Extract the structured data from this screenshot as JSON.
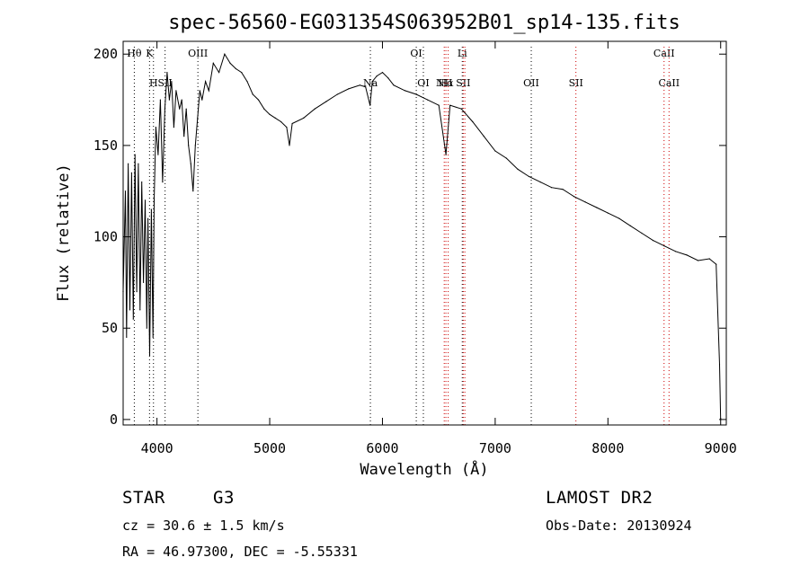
{
  "chart_data": {
    "type": "line",
    "title": "spec-56560-EG031354S063952B01_sp14-135.fits",
    "xlabel": "Wavelength (Å)",
    "ylabel": "Flux (relative)",
    "xlim": [
      3700,
      9050
    ],
    "ylim": [
      -3,
      207
    ],
    "xticks": [
      4000,
      5000,
      6000,
      7000,
      8000,
      9000
    ],
    "yticks": [
      0,
      50,
      100,
      150,
      200
    ],
    "grid": false,
    "series": [
      {
        "color": "#000000",
        "points": [
          [
            3700,
            70
          ],
          [
            3720,
            125
          ],
          [
            3730,
            45
          ],
          [
            3745,
            140
          ],
          [
            3760,
            60
          ],
          [
            3775,
            135
          ],
          [
            3790,
            55
          ],
          [
            3805,
            145
          ],
          [
            3820,
            70
          ],
          [
            3835,
            140
          ],
          [
            3850,
            60
          ],
          [
            3865,
            130
          ],
          [
            3880,
            75
          ],
          [
            3895,
            120
          ],
          [
            3910,
            50
          ],
          [
            3920,
            110
          ],
          [
            3935,
            35
          ],
          [
            3950,
            115
          ],
          [
            3965,
            45
          ],
          [
            3975,
            120
          ],
          [
            3990,
            160
          ],
          [
            4010,
            145
          ],
          [
            4030,
            175
          ],
          [
            4050,
            130
          ],
          [
            4070,
            170
          ],
          [
            4090,
            190
          ],
          [
            4110,
            175
          ],
          [
            4130,
            185
          ],
          [
            4150,
            160
          ],
          [
            4170,
            180
          ],
          [
            4200,
            170
          ],
          [
            4220,
            175
          ],
          [
            4240,
            155
          ],
          [
            4260,
            170
          ],
          [
            4280,
            150
          ],
          [
            4300,
            140
          ],
          [
            4320,
            125
          ],
          [
            4340,
            150
          ],
          [
            4360,
            165
          ],
          [
            4380,
            180
          ],
          [
            4400,
            175
          ],
          [
            4430,
            185
          ],
          [
            4460,
            180
          ],
          [
            4500,
            195
          ],
          [
            4550,
            190
          ],
          [
            4600,
            200
          ],
          [
            4650,
            195
          ],
          [
            4700,
            192
          ],
          [
            4750,
            190
          ],
          [
            4800,
            185
          ],
          [
            4850,
            178
          ],
          [
            4900,
            175
          ],
          [
            4950,
            170
          ],
          [
            5000,
            167
          ],
          [
            5050,
            165
          ],
          [
            5100,
            163
          ],
          [
            5150,
            160
          ],
          [
            5175,
            150
          ],
          [
            5200,
            162
          ],
          [
            5300,
            165
          ],
          [
            5400,
            170
          ],
          [
            5500,
            174
          ],
          [
            5600,
            178
          ],
          [
            5700,
            181
          ],
          [
            5800,
            183
          ],
          [
            5850,
            182
          ],
          [
            5890,
            172
          ],
          [
            5910,
            185
          ],
          [
            5950,
            188
          ],
          [
            6000,
            190
          ],
          [
            6050,
            187
          ],
          [
            6100,
            183
          ],
          [
            6200,
            180
          ],
          [
            6300,
            178
          ],
          [
            6400,
            175
          ],
          [
            6500,
            172
          ],
          [
            6563,
            145
          ],
          [
            6600,
            172
          ],
          [
            6700,
            170
          ],
          [
            6800,
            163
          ],
          [
            6900,
            155
          ],
          [
            7000,
            147
          ],
          [
            7100,
            143
          ],
          [
            7200,
            137
          ],
          [
            7300,
            133
          ],
          [
            7400,
            130
          ],
          [
            7500,
            127
          ],
          [
            7600,
            126
          ],
          [
            7700,
            122
          ],
          [
            7800,
            119
          ],
          [
            7900,
            116
          ],
          [
            8000,
            113
          ],
          [
            8100,
            110
          ],
          [
            8200,
            106
          ],
          [
            8300,
            102
          ],
          [
            8400,
            98
          ],
          [
            8500,
            95
          ],
          [
            8600,
            92
          ],
          [
            8700,
            90
          ],
          [
            8800,
            87
          ],
          [
            8900,
            88
          ],
          [
            8960,
            85
          ],
          [
            8990,
            30
          ],
          [
            9000,
            0
          ]
        ]
      }
    ],
    "lines": [
      {
        "x": 3799,
        "label": "Hθ",
        "row": 0,
        "color": "#000000"
      },
      {
        "x": 3934,
        "label": "K",
        "row": 0,
        "color": "#000000"
      },
      {
        "x": 3969,
        "label": "H",
        "row": 1,
        "color": "#000000"
      },
      {
        "x": 4072,
        "label": "SII",
        "row": 1,
        "color": "#000000"
      },
      {
        "x": 4363,
        "label": "OIII",
        "row": 0,
        "color": "#000000"
      },
      {
        "x": 5893,
        "label": "Na",
        "row": 1,
        "color": "#000000"
      },
      {
        "x": 6300,
        "label": "OI",
        "row": 0,
        "color": "#000000"
      },
      {
        "x": 6363,
        "label": "OI",
        "row": 1,
        "color": "#000000"
      },
      {
        "x": 6548,
        "label": "NII",
        "row": 1,
        "color": "#cc0000"
      },
      {
        "x": 6563,
        "label": "Hα",
        "row": 1,
        "color": "#cc0000"
      },
      {
        "x": 6583,
        "label": "",
        "row": 1,
        "color": "#cc0000"
      },
      {
        "x": 6708,
        "label": "Li",
        "row": 0,
        "color": "#000000"
      },
      {
        "x": 6717,
        "label": "SII",
        "row": 1,
        "color": "#cc0000"
      },
      {
        "x": 6731,
        "label": "",
        "row": 1,
        "color": "#cc0000"
      },
      {
        "x": 7320,
        "label": "OII",
        "row": 1,
        "color": "#000000"
      },
      {
        "x": 7716,
        "label": "SII",
        "row": 1,
        "color": "#cc0000"
      },
      {
        "x": 8498,
        "label": "CaII",
        "row": 0,
        "color": "#cc0000"
      },
      {
        "x": 8542,
        "label": "CaII",
        "row": 1,
        "color": "#cc0000"
      }
    ]
  },
  "info": {
    "object_type": "STAR",
    "subclass": "G3",
    "redshift_line": "cz = 30.6 ± 1.5 km/s",
    "coords_line": "RA =  46.97300, DEC =  -5.55331",
    "survey": "LAMOST DR2",
    "obs_date_line": "Obs-Date: 20130924"
  }
}
